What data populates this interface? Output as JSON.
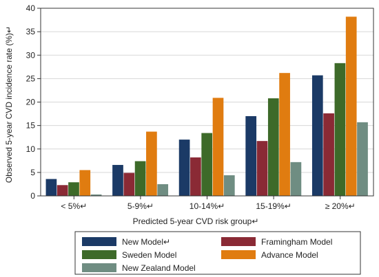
{
  "chart_data": {
    "type": "bar",
    "title": "",
    "xlabel": "Predicted 5-year CVD risk group↵",
    "ylabel": "Observed 5-year CVD incidence rate (%)↵",
    "categories": [
      "< 5%↵",
      "5-9%↵",
      "10-14%↵",
      "15-19%↵",
      "≥ 20%↵"
    ],
    "ylim": [
      0,
      40
    ],
    "yticks": [
      0,
      5,
      10,
      15,
      20,
      25,
      30,
      35,
      40
    ],
    "grid": true,
    "legend_position": "bottom",
    "series": [
      {
        "name": "New Model↵",
        "color": "#1b3a66",
        "values": [
          3.6,
          6.6,
          12.0,
          17.0,
          25.7
        ]
      },
      {
        "name": "Framingham Model",
        "color": "#8a2a35",
        "values": [
          2.3,
          4.9,
          8.2,
          11.7,
          17.6
        ]
      },
      {
        "name": "Sweden Model",
        "color": "#3d6a29",
        "values": [
          2.9,
          7.4,
          13.4,
          20.8,
          28.3
        ]
      },
      {
        "name": "Advance Model",
        "color": "#e07c10",
        "values": [
          5.5,
          13.7,
          20.9,
          26.2,
          38.2
        ]
      },
      {
        "name": "New Zealand Model",
        "color": "#6f8d82",
        "values": [
          0.3,
          2.5,
          4.4,
          7.2,
          15.7
        ]
      }
    ]
  }
}
